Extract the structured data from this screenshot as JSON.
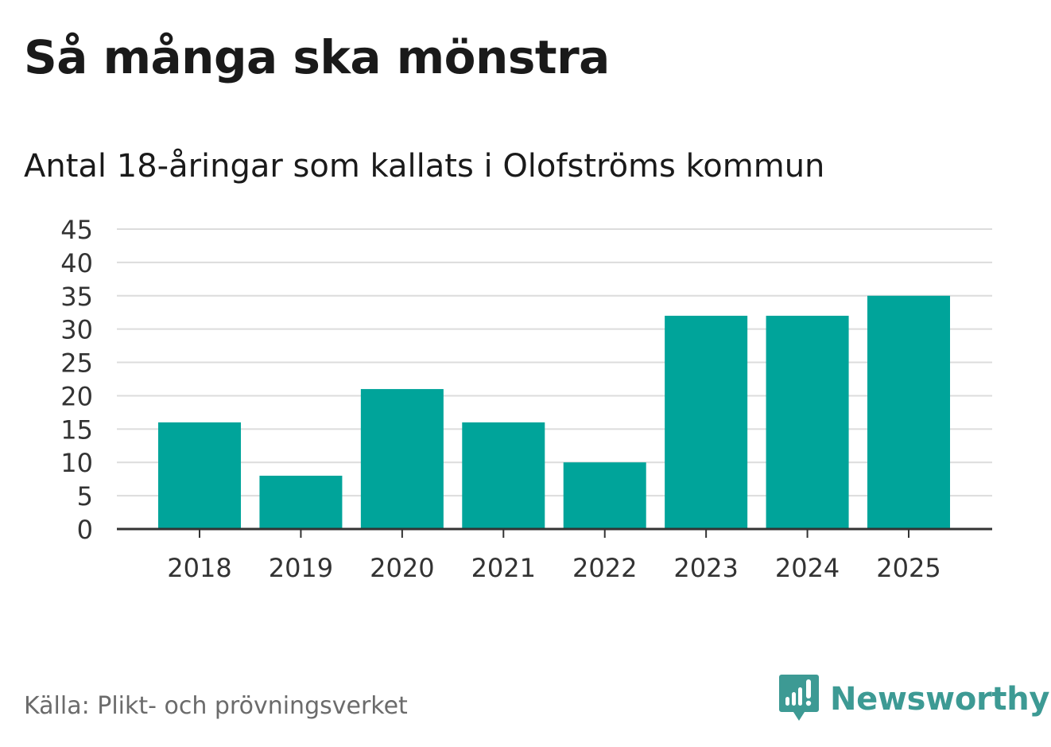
{
  "title": "Så många ska mönstra",
  "subtitle": "Antal 18-åringar som kallats i Olofströms kommun",
  "source": "Källa: Plikt- och prövningsverket",
  "brand": {
    "name": "Newsworthy",
    "icon": "newsworthy-logo-icon",
    "color": "#3d9a94"
  },
  "colors": {
    "bar": "#00a49a",
    "grid": "#dcdcdc",
    "axis": "#333333",
    "tick_label": "#333333"
  },
  "chart_data": {
    "type": "bar",
    "title": "Antal 18-åringar som kallats i Olofströms kommun",
    "xlabel": "",
    "ylabel": "",
    "categories": [
      "2018",
      "2019",
      "2020",
      "2021",
      "2022",
      "2023",
      "2024",
      "2025"
    ],
    "values": [
      16,
      8,
      21,
      16,
      10,
      32,
      32,
      35
    ],
    "ylim": [
      0,
      45
    ],
    "yticks": [
      0,
      5,
      10,
      15,
      20,
      25,
      30,
      35,
      40,
      45
    ],
    "grid": true,
    "legend": "none"
  }
}
